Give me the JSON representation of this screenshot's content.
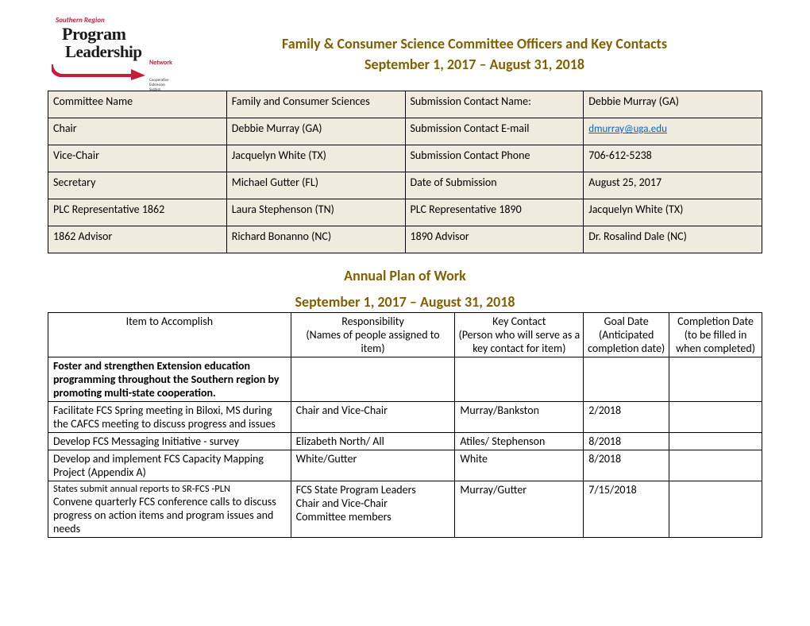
{
  "logo": {
    "southern_region": "Southern Region",
    "program": "Program",
    "leadership": "Leadership",
    "network": "Network",
    "ces": "Cooperative Extension System",
    "arrow_color": "#c41e3a"
  },
  "header": {
    "title1": "Family & Consumer Science Committee Officers and Key Contacts",
    "title2": "September 1, 2017 – August 31, 2018"
  },
  "info_table": {
    "rows": [
      [
        "Committee Name",
        "Family and Consumer Sciences",
        "Submission Contact Name:",
        "Debbie Murray (GA)"
      ],
      [
        "Chair",
        "Debbie Murray (GA)",
        "Submission Contact E-mail",
        "dmurray@uga.edu"
      ],
      [
        "Vice-Chair",
        "Jacquelyn White (TX)",
        "Submission Contact Phone",
        "706-612-5238"
      ],
      [
        "Secretary",
        "Michael Gutter (FL)",
        "Date of Submission",
        "August 25, 2017"
      ],
      [
        "PLC Representative 1862",
        "Laura Stephenson (TN)",
        "PLC Representative 1890",
        "Jacquelyn White (TX)"
      ],
      [
        "1862 Advisor",
        "Richard Bonanno (NC)",
        "1890 Advisor",
        "Dr. Rosalind Dale (NC)"
      ]
    ],
    "email_row": 1,
    "email_col": 3
  },
  "section2": {
    "title1": "Annual Plan of Work",
    "title2": "September 1, 2017 – August 31, 2018"
  },
  "plan_headers": {
    "item": "Item to Accomplish",
    "resp": "Responsibility",
    "resp_sub": "(Names of people assigned to item)",
    "contact": "Key Contact",
    "contact_sub": "(Person who will serve as a key contact for item)",
    "goal": "Goal Date",
    "goal_sub": "(Anticipated completion date)",
    "comp": "Completion Date",
    "comp_sub": "(to be filled in when completed)"
  },
  "plan_rows": [
    {
      "item": "Foster and strengthen Extension education programming throughout the Southern region by promoting multi-state cooperation.",
      "resp": "",
      "contact": "",
      "goal": "",
      "comp": "",
      "bold": true
    },
    {
      "item": "Facilitate FCS Spring meeting in Biloxi, MS during the CAFCS  meeting to discuss progress and issues",
      "resp": "Chair and Vice-Chair",
      "contact": "Murray/Bankston",
      "goal": "2/2018",
      "comp": ""
    },
    {
      "item": "Develop FCS Messaging Initiative - survey",
      "resp": "Elizabeth North/ All",
      "contact": "Atiles/ Stephenson",
      "goal": "8/2018",
      "comp": ""
    },
    {
      "item": "Develop and implement FCS Capacity Mapping Project (Appendix A)",
      "resp": "White/Gutter",
      "contact": "White",
      "goal": "8/2018",
      "comp": ""
    },
    {
      "item_small": "States submit annual reports to SR-FCS -PLN",
      "item2": "Convene quarterly FCS conference calls to discuss progress on action items and program issues and needs",
      "resp": "FCS State Program Leaders\nChair and Vice-Chair\nCommittee members",
      "contact": "Murray/Gutter",
      "goal": "7/15/2018",
      "comp": ""
    }
  ]
}
